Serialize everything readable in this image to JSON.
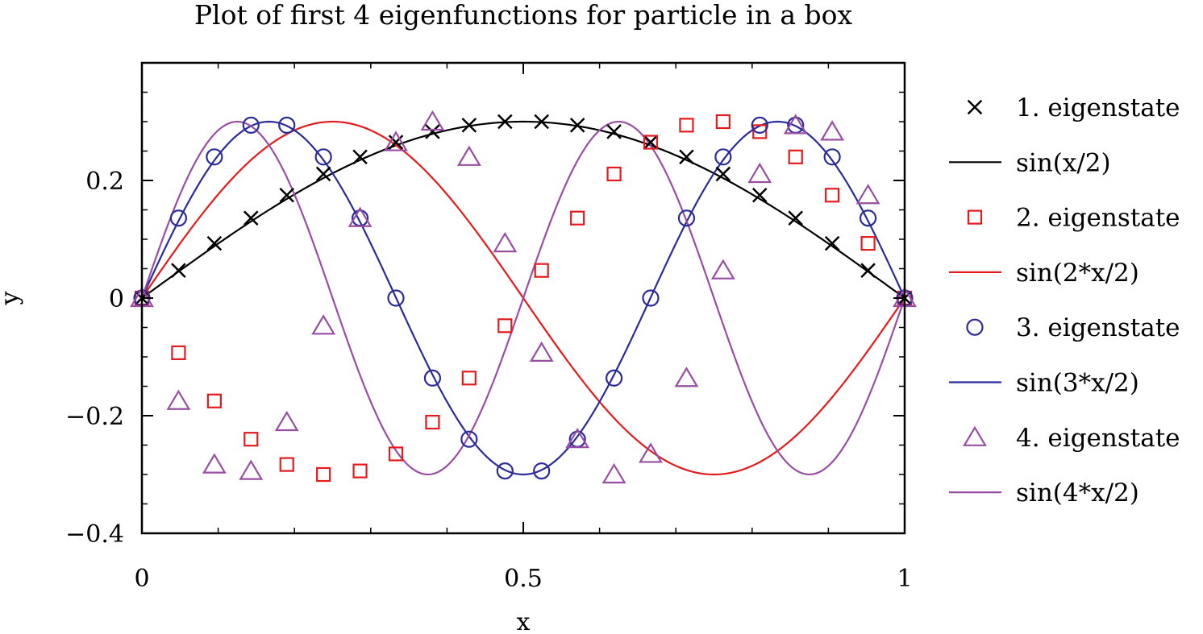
{
  "chart_data": {
    "type": "line",
    "title": "Plot of first 4 eigenfunctions for particle in a box",
    "xlabel": "x",
    "ylabel": "y",
    "xlim": [
      0,
      1
    ],
    "ylim": [
      -0.4,
      0.4
    ],
    "x_ticks": [
      {
        "value": 0,
        "label": "0"
      },
      {
        "value": 0.5,
        "label": "0.5"
      },
      {
        "value": 1,
        "label": "1"
      }
    ],
    "y_ticks": [
      {
        "value": -0.4,
        "label": "−0.4"
      },
      {
        "value": -0.2,
        "label": "−0.2"
      },
      {
        "value": 0,
        "label": "0"
      },
      {
        "value": 0.2,
        "label": "0.2"
      }
    ],
    "grid": false,
    "legend_position": "right",
    "series": [
      {
        "name": "1. eigenstate",
        "kind": "markers",
        "marker": "cross",
        "color": "#000000",
        "mode": 1,
        "x": [
          0.0,
          0.048,
          0.095,
          0.143,
          0.19,
          0.238,
          0.286,
          0.333,
          0.381,
          0.429,
          0.476,
          0.524,
          0.571,
          0.619,
          0.667,
          0.714,
          0.762,
          0.81,
          0.857,
          0.905,
          0.952,
          1.0
        ],
        "y": [
          0.0,
          0.047,
          0.093,
          0.136,
          0.175,
          0.211,
          0.24,
          0.265,
          0.283,
          0.294,
          0.3,
          0.3,
          0.294,
          0.283,
          0.265,
          0.24,
          0.211,
          0.175,
          0.136,
          0.093,
          0.047,
          0.0
        ]
      },
      {
        "name": "sin(x/2)",
        "kind": "line",
        "color": "#000000",
        "mode": 1
      },
      {
        "name": "2. eigenstate",
        "kind": "markers",
        "marker": "square",
        "color": "#e41a1c",
        "mode": 2,
        "x": [
          0.0,
          0.048,
          0.095,
          0.143,
          0.19,
          0.238,
          0.286,
          0.333,
          0.381,
          0.429,
          0.476,
          0.524,
          0.571,
          0.619,
          0.667,
          0.714,
          0.762,
          0.81,
          0.857,
          0.905,
          0.952,
          1.0
        ],
        "y": [
          0.0,
          -0.093,
          -0.175,
          -0.24,
          -0.283,
          -0.3,
          -0.294,
          -0.265,
          -0.211,
          -0.136,
          -0.047,
          0.047,
          0.136,
          0.211,
          0.265,
          0.294,
          0.3,
          0.283,
          0.24,
          0.175,
          0.093,
          0.0
        ]
      },
      {
        "name": "sin(2*x/2)",
        "kind": "line",
        "color": "#e41a1c",
        "mode": 2
      },
      {
        "name": "3. eigenstate",
        "kind": "markers",
        "marker": "circle",
        "color": "#2b2b9a",
        "mode": 3,
        "x": [
          0.0,
          0.048,
          0.095,
          0.143,
          0.19,
          0.238,
          0.286,
          0.333,
          0.381,
          0.429,
          0.476,
          0.524,
          0.571,
          0.619,
          0.667,
          0.714,
          0.762,
          0.81,
          0.857,
          0.905,
          0.952,
          1.0
        ],
        "y": [
          0.0,
          0.136,
          0.24,
          0.294,
          0.294,
          0.24,
          0.136,
          0.0,
          -0.136,
          -0.24,
          -0.294,
          -0.294,
          -0.24,
          -0.136,
          0.0,
          0.136,
          0.24,
          0.294,
          0.294,
          0.24,
          0.136,
          0.0
        ]
      },
      {
        "name": "sin(3*x/2)",
        "kind": "line",
        "color": "#2b2b9a",
        "mode": 3
      },
      {
        "name": "4. eigenstate",
        "kind": "markers",
        "marker": "triangle",
        "color": "#984ea3",
        "mode": 4,
        "x": [
          0.0,
          0.048,
          0.095,
          0.143,
          0.19,
          0.238,
          0.286,
          0.333,
          0.381,
          0.429,
          0.476,
          0.524,
          0.571,
          0.619,
          0.667,
          0.714,
          0.762,
          0.81,
          0.857,
          0.905,
          0.952,
          1.0
        ],
        "y": [
          0.0,
          -0.175,
          -0.283,
          -0.294,
          -0.211,
          -0.047,
          0.136,
          0.265,
          0.3,
          0.24,
          0.093,
          -0.093,
          -0.24,
          -0.3,
          -0.265,
          -0.136,
          0.047,
          0.211,
          0.294,
          0.283,
          0.175,
          0.0
        ]
      },
      {
        "name": "sin(4*x/2)",
        "kind": "line",
        "color": "#984ea3",
        "mode": 4
      }
    ]
  }
}
